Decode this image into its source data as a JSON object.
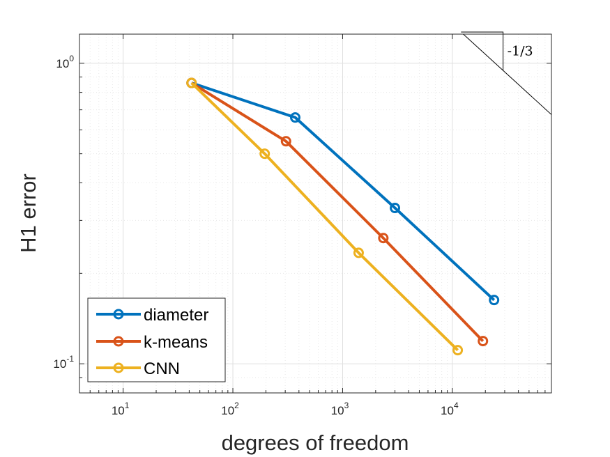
{
  "chart_data": {
    "type": "line",
    "scale": {
      "x": "log",
      "y": "log"
    },
    "xlabel": "degrees of freedom",
    "ylabel": "H1 error",
    "xlim": [
      4,
      80000
    ],
    "ylim": [
      0.08,
      1.25
    ],
    "x_ticks": [
      {
        "value": 10,
        "base": "10",
        "exp": "1"
      },
      {
        "value": 100,
        "base": "10",
        "exp": "2"
      },
      {
        "value": 1000,
        "base": "10",
        "exp": "3"
      },
      {
        "value": 10000,
        "base": "10",
        "exp": "4"
      }
    ],
    "y_ticks": [
      {
        "value": 0.1,
        "base": "10",
        "exp": "-1"
      },
      {
        "value": 1,
        "base": "10",
        "exp": "0"
      }
    ],
    "grid": true,
    "minor_grid": true,
    "legend_position": "bottom-left",
    "series": [
      {
        "name": "diameter",
        "color": "#0072BD",
        "x": [
          42,
          370,
          3000,
          24000
        ],
        "y": [
          0.86,
          0.66,
          0.33,
          0.163
        ]
      },
      {
        "name": "k-means",
        "color": "#D95319",
        "x": [
          42,
          305,
          2350,
          19000
        ],
        "y": [
          0.86,
          0.55,
          0.262,
          0.119
        ]
      },
      {
        "name": "CNN",
        "color": "#EDB120",
        "x": [
          42,
          195,
          1400,
          11200
        ],
        "y": [
          0.86,
          0.5,
          0.234,
          0.111
        ]
      }
    ],
    "annotations": [
      {
        "type": "slope-triangle",
        "label": "-1/3",
        "slope": -0.3333
      }
    ]
  }
}
